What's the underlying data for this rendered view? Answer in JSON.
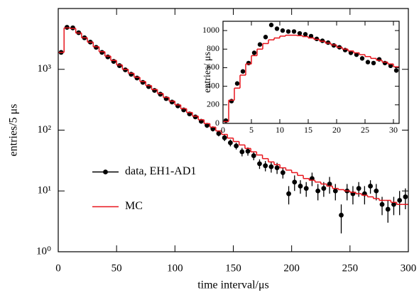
{
  "chart_data": [
    {
      "type": "scatter",
      "xlabel": "time interval/μs",
      "ylabel": "entries/5 μs",
      "logy": true,
      "legend": "center-left",
      "xlim": [
        0,
        300
      ],
      "xticks": [
        0,
        50,
        100,
        150,
        200,
        250,
        300
      ],
      "ylim": [
        1,
        10000
      ],
      "yticks": [
        {
          "value": 1,
          "label": "10⁰"
        },
        {
          "value": 10,
          "label": "10¹"
        },
        {
          "value": 100,
          "label": "10²"
        },
        {
          "value": 1000,
          "label": "10³"
        }
      ],
      "series": [
        {
          "name": "data, EH1-AD1",
          "color": "#000000",
          "style": "points",
          "x": [
            2.5,
            7.5,
            12.5,
            17.5,
            22.5,
            27.5,
            32.5,
            37.5,
            42.5,
            47.5,
            52.5,
            57.5,
            62.5,
            67.5,
            72.5,
            77.5,
            82.5,
            87.5,
            92.5,
            97.5,
            102.5,
            107.5,
            112.5,
            117.5,
            122.5,
            127.5,
            132.5,
            137.5,
            142.5,
            147.5,
            152.5,
            157.5,
            162.5,
            167.5,
            172.5,
            177.5,
            182.5,
            187.5,
            192.5,
            197.5,
            202.5,
            207.5,
            212.5,
            217.5,
            222.5,
            227.5,
            232.5,
            237.5,
            242.5,
            247.5,
            252.5,
            257.5,
            262.5,
            267.5,
            272.5,
            277.5,
            282.5,
            287.5,
            292.5,
            297.5
          ],
          "values": [
            1900,
            4900,
            4800,
            4000,
            3300,
            2800,
            2300,
            1900,
            1600,
            1350,
            1150,
            980,
            830,
            720,
            610,
            520,
            450,
            390,
            330,
            290,
            250,
            215,
            185,
            165,
            140,
            120,
            105,
            88,
            75,
            62,
            55,
            44,
            45,
            38,
            28,
            26,
            25,
            24,
            20,
            9,
            14,
            12,
            11,
            16,
            10,
            11,
            13,
            10,
            4,
            10,
            9,
            11,
            9,
            12,
            10,
            6,
            5,
            6,
            7,
            8
          ],
          "errors": [
            44,
            70,
            69,
            63,
            57,
            53,
            48,
            44,
            40,
            37,
            34,
            31,
            29,
            27,
            25,
            23,
            21,
            20,
            18,
            17,
            16,
            15,
            14,
            13,
            12,
            11,
            10,
            9,
            9,
            8,
            7,
            7,
            7,
            6,
            5,
            5,
            5,
            5,
            4,
            3,
            4,
            3,
            3,
            4,
            3,
            3,
            4,
            3,
            2,
            3,
            3,
            3,
            3,
            3,
            3,
            2,
            2,
            2,
            3,
            3
          ]
        },
        {
          "name": "MC",
          "color": "#e8141c",
          "style": "step",
          "bins": [
            0,
            5,
            10,
            15,
            20,
            25,
            30,
            35,
            40,
            45,
            50,
            55,
            60,
            65,
            70,
            75,
            80,
            85,
            90,
            95,
            100,
            105,
            110,
            115,
            120,
            125,
            130,
            135,
            140,
            145,
            150,
            155,
            160,
            165,
            170,
            175,
            180,
            185,
            190,
            195,
            200,
            205,
            210,
            215,
            220,
            225,
            230,
            235,
            240,
            245,
            250,
            255,
            260,
            265,
            270,
            275,
            280,
            285,
            290,
            295,
            300
          ],
          "values": [
            1900,
            4800,
            4700,
            3950,
            3300,
            2800,
            2350,
            1950,
            1650,
            1400,
            1180,
            1000,
            860,
            740,
            630,
            540,
            465,
            400,
            345,
            300,
            260,
            225,
            195,
            170,
            148,
            128,
            112,
            97,
            85,
            74,
            65,
            57,
            50,
            44,
            39,
            34,
            30,
            27,
            24,
            22,
            20,
            18,
            16,
            15,
            14,
            13,
            12,
            11,
            10.5,
            10,
            9.5,
            9,
            8.5,
            8,
            7.5,
            7,
            7,
            6.5,
            6,
            6
          ]
        }
      ]
    },
    {
      "type": "scatter",
      "ylabel": "entries/ μs",
      "logy": false,
      "xlim": [
        0,
        31
      ],
      "xticks": [
        0,
        5,
        10,
        15,
        20,
        25,
        30
      ],
      "ylim": [
        0,
        1100
      ],
      "yticks": [
        0,
        200,
        400,
        600,
        800,
        1000
      ],
      "series": [
        {
          "color": "#000000",
          "style": "points",
          "x": [
            0.5,
            1.5,
            2.5,
            3.5,
            4.5,
            5.5,
            6.5,
            7.5,
            8.5,
            9.5,
            10.5,
            11.5,
            12.5,
            13.5,
            14.5,
            15.5,
            16.5,
            17.5,
            18.5,
            19.5,
            20.5,
            21.5,
            22.5,
            23.5,
            24.5,
            25.5,
            26.5,
            27.5,
            28.5,
            29.5,
            30.5
          ],
          "values": [
            30,
            240,
            430,
            560,
            650,
            760,
            850,
            930,
            1060,
            1020,
            1000,
            990,
            990,
            970,
            960,
            940,
            910,
            890,
            870,
            840,
            820,
            790,
            760,
            740,
            700,
            660,
            650,
            690,
            650,
            620,
            570
          ]
        },
        {
          "color": "#e8141c",
          "style": "step",
          "bins": [
            0,
            1,
            2,
            3,
            4,
            5,
            6,
            7,
            8,
            9,
            10,
            11,
            12,
            13,
            14,
            15,
            16,
            17,
            18,
            19,
            20,
            21,
            22,
            23,
            24,
            25,
            26,
            27,
            28,
            29,
            30,
            31
          ],
          "values": [
            20,
            250,
            380,
            520,
            640,
            730,
            800,
            860,
            900,
            920,
            940,
            950,
            950,
            945,
            935,
            920,
            905,
            885,
            865,
            845,
            820,
            800,
            780,
            760,
            740,
            720,
            700,
            680,
            660,
            640,
            610
          ]
        }
      ]
    }
  ]
}
